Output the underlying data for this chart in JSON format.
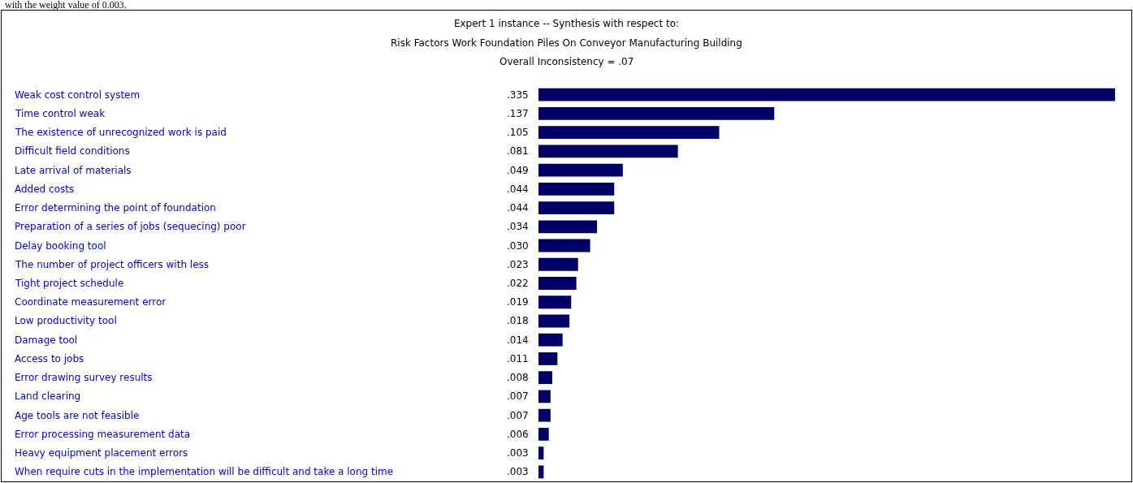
{
  "chart_data": {
    "type": "bar",
    "orientation": "horizontal",
    "title": "Expert 1 instance -- Synthesis with respect to:",
    "subtitle": "Risk Factors Work Foundation Piles On Conveyor Manufacturing Building",
    "annotations": [
      "Overall Inconsistency = .07",
      "with the weight value of 0.003."
    ],
    "categories": [
      "Weak cost control system",
      "Time control weak",
      "The existence of unrecognized work is paid",
      "Difficult field conditions",
      "Late arrival of materials",
      "Added costs",
      "Error determining the point of foundation",
      "Preparation of a series of jobs (sequecing) poor",
      "Delay booking tool",
      "The number of project officers with less",
      "Tight project schedule",
      "Coordinate measurement error",
      "Low productivity tool",
      "Damage tool",
      "Access to jobs",
      "Error drawing survey results",
      "Land clearing",
      "Age tools are not feasible",
      "Error processing measurement data",
      "Heavy equipment placement errors",
      "When require cuts in the implementation will be difficult and take a long time"
    ],
    "values": [
      0.335,
      0.137,
      0.105,
      0.081,
      0.049,
      0.044,
      0.044,
      0.034,
      0.03,
      0.023,
      0.022,
      0.019,
      0.018,
      0.014,
      0.011,
      0.008,
      0.007,
      0.007,
      0.006,
      0.003,
      0.003
    ],
    "value_labels": [
      ".335",
      ".137",
      ".105",
      ".081",
      ".049",
      ".044",
      ".044",
      ".034",
      ".030",
      ".023",
      ".022",
      ".019",
      ".018",
      ".014",
      ".011",
      ".008",
      ".007",
      ".007",
      ".006",
      ".003",
      ".003"
    ],
    "color": "#000066",
    "xlim": [
      0,
      0.336
    ],
    "grid": false,
    "legend": false
  }
}
